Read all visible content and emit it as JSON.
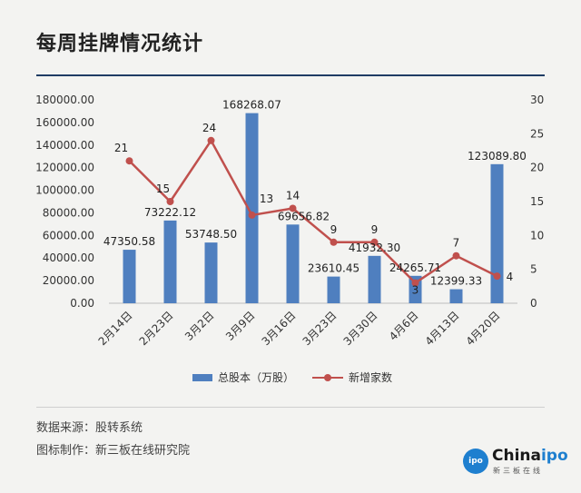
{
  "title": "每周挂牌情况统计",
  "chart_data": {
    "type": "bar",
    "categories": [
      "2月14日",
      "2月23日",
      "3月2日",
      "3月9日",
      "3月16日",
      "3月23日",
      "3月30日",
      "4月6日",
      "4月13日",
      "4月20日"
    ],
    "series": [
      {
        "name": "总股本（万股）",
        "kind": "bar",
        "axis": "left",
        "color": "#4f7fbf",
        "values": [
          47350.58,
          73222.12,
          53748.5,
          168268.07,
          69656.82,
          23610.45,
          41932.3,
          24265.71,
          12399.33,
          123089.8
        ],
        "labels": [
          "47350.58",
          "73222.12",
          "53748.50",
          "168268.07",
          "69656.82",
          "23610.45",
          "41932.30",
          "24265.71",
          "12399.33",
          "123089.80"
        ]
      },
      {
        "name": "新增家数",
        "kind": "line",
        "axis": "right",
        "color": "#c0504d",
        "values": [
          21,
          15,
          24,
          13,
          14,
          9,
          9,
          3,
          7,
          4
        ],
        "labels": [
          "21",
          "15",
          "24",
          "13",
          "14",
          "9",
          "9",
          "3",
          "7",
          "4"
        ]
      }
    ],
    "y_left": {
      "range": [
        0,
        180000
      ],
      "ticks": [
        "0.00",
        "20000.00",
        "40000.00",
        "60000.00",
        "80000.00",
        "100000.00",
        "120000.00",
        "140000.00",
        "160000.00",
        "180000.00"
      ]
    },
    "y_right": {
      "range": [
        0,
        30
      ],
      "ticks": [
        "0",
        "5",
        "10",
        "15",
        "20",
        "25",
        "30"
      ]
    },
    "grid": false,
    "legend": "bottom"
  },
  "notes": {
    "source": "数据来源：股转系统",
    "maker": "图标制作：新三板在线研究院"
  },
  "logo": {
    "main": "China",
    "accent": "ipo",
    "sub": "新三板在线",
    "badge": "China ipo"
  }
}
